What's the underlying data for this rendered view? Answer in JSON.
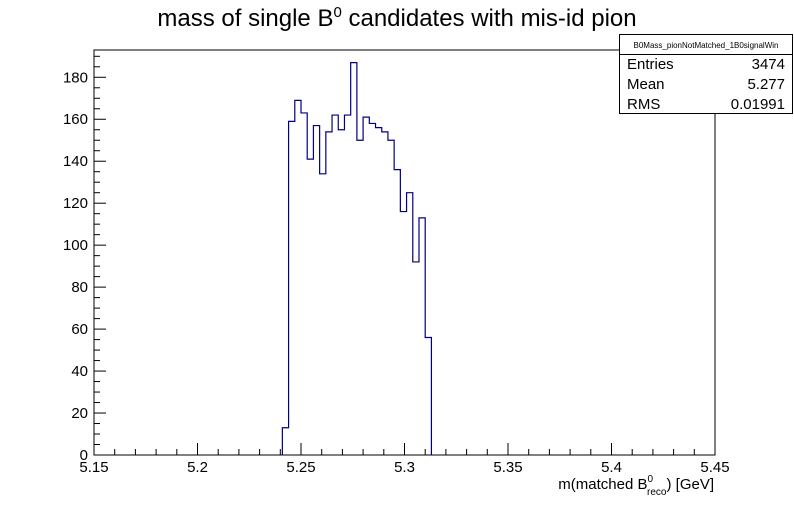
{
  "chart_data": {
    "type": "histogram",
    "title": {
      "main": "mass of single B",
      "sup": "0",
      "rest": " candidates with mis-id pion"
    },
    "xlabel": {
      "pre": "m(matched B",
      "sup": "0",
      "sub": "reco",
      "post": ") [GeV]"
    },
    "ylabel": "",
    "xlim": [
      5.15,
      5.45
    ],
    "ylim": [
      0,
      193
    ],
    "x_ticks": [
      5.15,
      5.2,
      5.25,
      5.3,
      5.35,
      5.4,
      5.45
    ],
    "x_tick_labels": [
      "5.15",
      "5.2",
      "5.25",
      "5.3",
      "5.35",
      "5.4",
      "5.45"
    ],
    "y_ticks": [
      0,
      20,
      40,
      60,
      80,
      100,
      120,
      140,
      160,
      180
    ],
    "y_tick_labels": [
      "0",
      "20",
      "40",
      "60",
      "80",
      "100",
      "120",
      "140",
      "160",
      "180"
    ],
    "bin_width": 0.003,
    "bin_edges_start": 5.241,
    "values": [
      13,
      159,
      169,
      163,
      141,
      157,
      134,
      154,
      162,
      155,
      162,
      187,
      150,
      161,
      158,
      156,
      154,
      150,
      136,
      116,
      125,
      92,
      113,
      56
    ],
    "line_color": "#000080",
    "stats": {
      "name": "B0Mass_pionNotMatched_1B0signalWin",
      "rows": [
        {
          "label": "Entries",
          "value": "3474"
        },
        {
          "label": "Mean",
          "value": "5.277"
        },
        {
          "label": "RMS",
          "value": "0.01991"
        }
      ]
    }
  }
}
